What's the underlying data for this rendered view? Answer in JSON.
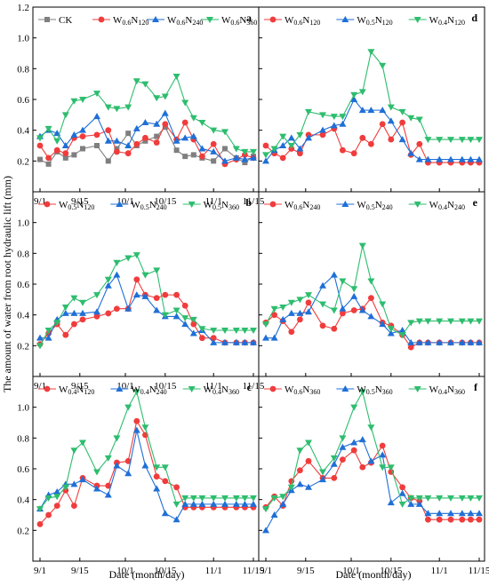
{
  "ylabel": "The amount of water from root hydraulic lift (mm)",
  "xlabel": "Date (month/day)",
  "colors": {
    "gray": "#7f7f7f",
    "red": "#f03c3c",
    "blue": "#1f6fd6",
    "green": "#2dbd6e"
  },
  "chart_data": [
    {
      "type": "line",
      "panel": "a",
      "ylim": [
        0,
        1.2
      ],
      "xlim": [
        "9/1",
        "11/15"
      ],
      "yticks": [
        "0.2",
        "0.4",
        "0.6",
        "0.8",
        "1.0",
        "1.2"
      ],
      "xticks": [
        "9/1",
        "9/15",
        "10/1",
        "10/15",
        "11/1",
        "11/15"
      ],
      "x": [
        "9/1",
        "9/4",
        "9/7",
        "9/10",
        "9/13",
        "9/16",
        "9/21",
        "9/25",
        "9/28",
        "10/2",
        "10/5",
        "10/8",
        "10/12",
        "10/15",
        "10/19",
        "10/22",
        "10/25",
        "10/28",
        "11/1",
        "11/5",
        "11/9",
        "11/12",
        "11/15"
      ],
      "series": [
        {
          "name": "CK",
          "sub": "",
          "color": "gray",
          "marker": "square",
          "values": [
            0.21,
            0.18,
            0.26,
            0.22,
            0.24,
            0.28,
            0.3,
            0.2,
            0.28,
            0.38,
            0.3,
            0.33,
            0.36,
            0.42,
            0.27,
            0.23,
            0.24,
            0.22,
            0.2,
            0.28,
            0.22,
            0.19,
            0.23
          ]
        },
        {
          "name": "W",
          "sub": "0.6",
          "name2": "N",
          "sub2": "120",
          "color": "red",
          "marker": "circle",
          "values": [
            0.3,
            0.22,
            0.27,
            0.25,
            0.35,
            0.36,
            0.37,
            0.4,
            0.26,
            0.25,
            0.31,
            0.35,
            0.32,
            0.44,
            0.34,
            0.45,
            0.34,
            0.23,
            0.31,
            0.18,
            0.21,
            0.24,
            0.22
          ]
        },
        {
          "name": "W",
          "sub": "0.6",
          "name2": "N",
          "sub2": "240",
          "color": "blue",
          "marker": "triangle-up",
          "values": [
            0.36,
            0.4,
            0.38,
            0.3,
            0.37,
            0.4,
            0.49,
            0.33,
            0.33,
            0.3,
            0.41,
            0.45,
            0.44,
            0.51,
            0.33,
            0.35,
            0.36,
            0.28,
            0.26,
            0.2,
            0.22,
            0.21,
            0.22
          ]
        },
        {
          "name": "W",
          "sub": "0.6",
          "name2": "N",
          "sub2": "360",
          "color": "green",
          "marker": "triangle-down",
          "values": [
            0.35,
            0.41,
            0.33,
            0.5,
            0.59,
            0.6,
            0.64,
            0.55,
            0.54,
            0.55,
            0.72,
            0.7,
            0.61,
            0.62,
            0.75,
            0.58,
            0.48,
            0.45,
            0.4,
            0.39,
            0.28,
            0.26,
            0.26
          ]
        }
      ]
    },
    {
      "type": "line",
      "panel": "b",
      "ylim": [
        0,
        1.2
      ],
      "xlim": [
        "9/1",
        "11/15"
      ],
      "yticks": [
        "0.2",
        "0.4",
        "0.6",
        "0.8",
        "1.0"
      ],
      "xticks": [
        "9/1",
        "9/15",
        "10/1",
        "10/15",
        "11/1",
        "11/15"
      ],
      "x": [
        "9/1",
        "9/4",
        "9/7",
        "9/10",
        "9/13",
        "9/16",
        "9/21",
        "9/25",
        "9/28",
        "10/2",
        "10/5",
        "10/8",
        "10/12",
        "10/15",
        "10/19",
        "10/22",
        "10/25",
        "10/28",
        "11/1",
        "11/5",
        "11/9",
        "11/12",
        "11/15"
      ],
      "series": [
        {
          "name": "W",
          "sub": "0.5",
          "name2": "N",
          "sub2": "120",
          "color": "red",
          "marker": "circle",
          "values": [
            0.21,
            0.28,
            0.34,
            0.27,
            0.34,
            0.37,
            0.39,
            0.41,
            0.44,
            0.44,
            0.63,
            0.53,
            0.51,
            0.53,
            0.53,
            0.46,
            0.34,
            0.25,
            0.25,
            0.22,
            0.22,
            0.22,
            0.22
          ]
        },
        {
          "name": "W",
          "sub": "0.5",
          "name2": "N",
          "sub2": "240",
          "color": "blue",
          "marker": "triangle-up",
          "values": [
            0.25,
            0.25,
            0.37,
            0.41,
            0.41,
            0.41,
            0.42,
            0.59,
            0.66,
            0.44,
            0.53,
            0.52,
            0.43,
            0.39,
            0.39,
            0.34,
            0.28,
            0.3,
            0.22,
            0.22,
            0.22,
            0.22,
            0.22
          ]
        },
        {
          "name": "W",
          "sub": "0.5",
          "name2": "N",
          "sub2": "360",
          "color": "green",
          "marker": "triangle-down",
          "values": [
            0.2,
            0.3,
            0.35,
            0.45,
            0.51,
            0.48,
            0.53,
            0.63,
            0.74,
            0.77,
            0.79,
            0.66,
            0.69,
            0.4,
            0.43,
            0.38,
            0.37,
            0.31,
            0.3,
            0.3,
            0.3,
            0.3,
            0.3
          ]
        }
      ]
    },
    {
      "type": "line",
      "panel": "c",
      "ylim": [
        0,
        1.2
      ],
      "xlim": [
        "9/1",
        "11/15"
      ],
      "yticks": [
        "0.2",
        "0.4",
        "0.6",
        "0.8",
        "1.0"
      ],
      "xticks": [
        "9/1",
        "9/15",
        "10/1",
        "10/15",
        "11/1",
        "11/15"
      ],
      "x": [
        "9/1",
        "9/4",
        "9/7",
        "9/10",
        "9/13",
        "9/16",
        "9/21",
        "9/25",
        "9/28",
        "10/2",
        "10/5",
        "10/8",
        "10/12",
        "10/15",
        "10/19",
        "10/22",
        "10/25",
        "10/28",
        "11/1",
        "11/5",
        "11/9",
        "11/12",
        "11/15"
      ],
      "series": [
        {
          "name": "W",
          "sub": "0.4",
          "name2": "N",
          "sub2": "120",
          "color": "red",
          "marker": "circle",
          "values": [
            0.24,
            0.3,
            0.36,
            0.46,
            0.36,
            0.54,
            0.49,
            0.49,
            0.64,
            0.65,
            0.91,
            0.82,
            0.55,
            0.52,
            0.48,
            0.35,
            0.35,
            0.35,
            0.35,
            0.35,
            0.35,
            0.35,
            0.35
          ]
        },
        {
          "name": "W",
          "sub": "0.4",
          "name2": "N",
          "sub2": "240",
          "color": "blue",
          "marker": "triangle-up",
          "values": [
            0.34,
            0.43,
            0.45,
            0.5,
            0.5,
            0.53,
            0.47,
            0.43,
            0.62,
            0.57,
            0.85,
            0.62,
            0.47,
            0.31,
            0.27,
            0.37,
            0.37,
            0.37,
            0.37,
            0.37,
            0.37,
            0.37,
            0.37
          ]
        },
        {
          "name": "W",
          "sub": "0.4",
          "name2": "N",
          "sub2": "360",
          "color": "green",
          "marker": "triangle-down",
          "values": [
            0.34,
            0.41,
            0.42,
            0.48,
            0.72,
            0.77,
            0.58,
            0.67,
            0.8,
            1.0,
            1.1,
            0.87,
            0.61,
            0.61,
            0.37,
            0.41,
            0.41,
            0.41,
            0.41,
            0.41,
            0.41,
            0.41,
            0.41
          ]
        }
      ]
    },
    {
      "type": "line",
      "panel": "d",
      "ylim": [
        0,
        1.2
      ],
      "xlim": [
        "9/1",
        "11/15"
      ],
      "yticks": [],
      "xticks": [],
      "x": [
        "9/1",
        "9/4",
        "9/7",
        "9/10",
        "9/13",
        "9/16",
        "9/21",
        "9/25",
        "9/28",
        "10/2",
        "10/5",
        "10/8",
        "10/12",
        "10/15",
        "10/19",
        "10/22",
        "10/25",
        "10/28",
        "11/1",
        "11/5",
        "11/9",
        "11/12",
        "11/15"
      ],
      "series": [
        {
          "name": "W",
          "sub": "0.6",
          "name2": "N",
          "sub2": "120",
          "color": "red",
          "marker": "circle",
          "values": [
            0.3,
            0.25,
            0.22,
            0.28,
            0.25,
            0.37,
            0.37,
            0.41,
            0.27,
            0.25,
            0.35,
            0.31,
            0.44,
            0.34,
            0.45,
            0.24,
            0.31,
            0.19,
            0.19,
            0.19,
            0.19,
            0.19,
            0.19
          ]
        },
        {
          "name": "W",
          "sub": "0.5",
          "name2": "N",
          "sub2": "120",
          "color": "blue",
          "marker": "triangle-up",
          "values": [
            0.2,
            0.27,
            0.3,
            0.35,
            0.28,
            0.35,
            0.4,
            0.43,
            0.44,
            0.6,
            0.53,
            0.53,
            0.53,
            0.46,
            0.34,
            0.25,
            0.21,
            0.21,
            0.21,
            0.21,
            0.21,
            0.21,
            0.21
          ]
        },
        {
          "name": "W",
          "sub": "0.4",
          "name2": "N",
          "sub2": "120",
          "color": "green",
          "marker": "triangle-down",
          "values": [
            0.24,
            0.28,
            0.36,
            0.3,
            0.37,
            0.52,
            0.5,
            0.49,
            0.49,
            0.63,
            0.65,
            0.91,
            0.82,
            0.55,
            0.52,
            0.48,
            0.47,
            0.34,
            0.34,
            0.34,
            0.34,
            0.34,
            0.34
          ]
        }
      ]
    },
    {
      "type": "line",
      "panel": "e",
      "ylim": [
        0,
        1.2
      ],
      "xlim": [
        "9/1",
        "11/15"
      ],
      "yticks": [],
      "xticks": [],
      "x": [
        "9/1",
        "9/4",
        "9/7",
        "9/10",
        "9/13",
        "9/16",
        "9/21",
        "9/25",
        "9/28",
        "10/2",
        "10/5",
        "10/8",
        "10/12",
        "10/15",
        "10/19",
        "10/22",
        "10/25",
        "10/28",
        "11/1",
        "11/5",
        "11/9",
        "11/12",
        "11/15"
      ],
      "series": [
        {
          "name": "W",
          "sub": "0.6",
          "name2": "N",
          "sub2": "240",
          "color": "red",
          "marker": "circle",
          "values": [
            0.35,
            0.4,
            0.36,
            0.29,
            0.37,
            0.48,
            0.33,
            0.31,
            0.41,
            0.43,
            0.44,
            0.51,
            0.35,
            0.33,
            0.27,
            0.19,
            0.22,
            0.22,
            0.22,
            0.22,
            0.22,
            0.22,
            0.22
          ]
        },
        {
          "name": "W",
          "sub": "0.5",
          "name2": "N",
          "sub2": "240",
          "color": "blue",
          "marker": "triangle-up",
          "values": [
            0.25,
            0.25,
            0.37,
            0.41,
            0.41,
            0.42,
            0.59,
            0.66,
            0.44,
            0.52,
            0.43,
            0.39,
            0.34,
            0.28,
            0.3,
            0.22,
            0.22,
            0.22,
            0.22,
            0.22,
            0.22,
            0.22,
            0.22
          ]
        },
        {
          "name": "W",
          "sub": "0.4",
          "name2": "N",
          "sub2": "240",
          "color": "green",
          "marker": "triangle-down",
          "values": [
            0.34,
            0.44,
            0.45,
            0.48,
            0.5,
            0.53,
            0.47,
            0.43,
            0.62,
            0.57,
            0.85,
            0.62,
            0.47,
            0.31,
            0.27,
            0.35,
            0.36,
            0.36,
            0.36,
            0.36,
            0.36,
            0.36,
            0.36
          ]
        }
      ]
    },
    {
      "type": "line",
      "panel": "f",
      "ylim": [
        0,
        1.2
      ],
      "xlim": [
        "9/1",
        "11/15"
      ],
      "yticks": [],
      "xticks": [
        "9/1",
        "9/15",
        "10/1",
        "10/15",
        "11/1",
        "11/15"
      ],
      "x": [
        "9/1",
        "9/4",
        "9/7",
        "9/10",
        "9/13",
        "9/16",
        "9/21",
        "9/25",
        "9/28",
        "10/2",
        "10/5",
        "10/8",
        "10/12",
        "10/15",
        "10/19",
        "10/22",
        "10/25",
        "10/28",
        "11/1",
        "11/5",
        "11/9",
        "11/12",
        "11/15"
      ],
      "series": [
        {
          "name": "W",
          "sub": "0.6",
          "name2": "N",
          "sub2": "360",
          "color": "red",
          "marker": "circle",
          "values": [
            0.35,
            0.42,
            0.36,
            0.52,
            0.59,
            0.65,
            0.54,
            0.54,
            0.66,
            0.72,
            0.61,
            0.64,
            0.75,
            0.58,
            0.48,
            0.41,
            0.39,
            0.27,
            0.27,
            0.27,
            0.27,
            0.27,
            0.27
          ]
        },
        {
          "name": "W",
          "sub": "0.5",
          "name2": "N",
          "sub2": "360",
          "color": "blue",
          "marker": "triangle-up",
          "values": [
            0.2,
            0.3,
            0.37,
            0.46,
            0.5,
            0.48,
            0.53,
            0.63,
            0.74,
            0.77,
            0.79,
            0.65,
            0.69,
            0.38,
            0.44,
            0.37,
            0.37,
            0.31,
            0.31,
            0.31,
            0.31,
            0.31,
            0.31
          ]
        },
        {
          "name": "W",
          "sub": "0.4",
          "name2": "N",
          "sub2": "360",
          "color": "green",
          "marker": "triangle-down",
          "values": [
            0.34,
            0.41,
            0.42,
            0.48,
            0.72,
            0.77,
            0.58,
            0.67,
            0.8,
            1.0,
            1.1,
            0.87,
            0.61,
            0.61,
            0.37,
            0.41,
            0.41,
            0.41,
            0.41,
            0.41,
            0.41,
            0.41,
            0.41
          ]
        }
      ]
    }
  ]
}
